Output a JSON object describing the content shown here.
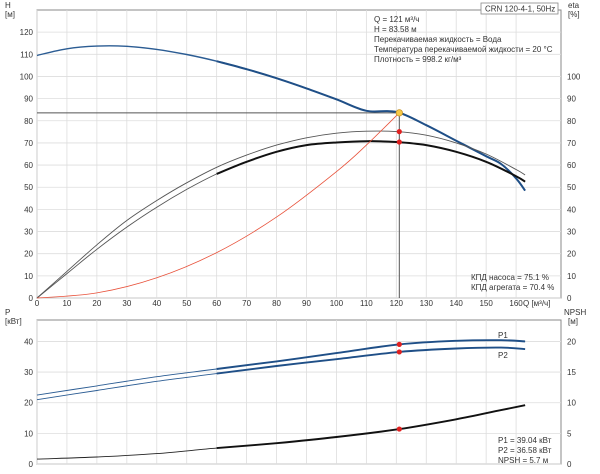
{
  "chart_data": [
    {
      "type": "line",
      "panel": "head-efficiency",
      "title_box": "CRN 120-4-1, 50Hz",
      "left_axis": {
        "label_top": "H",
        "label_unit": "[м]",
        "ylim": [
          0,
          130
        ],
        "ticks": [
          0,
          10,
          20,
          30,
          40,
          50,
          60,
          70,
          80,
          90,
          100,
          110,
          120
        ]
      },
      "right_axis": {
        "label_top": "eta",
        "label_unit": "[%]",
        "ylim": [
          0,
          130
        ],
        "ticks": [
          0,
          10,
          20,
          30,
          40,
          50,
          60,
          70,
          80,
          90,
          100
        ]
      },
      "x_axis": {
        "label": "Q [м³/ч]",
        "xlim": [
          0,
          175
        ],
        "ticks": [
          0,
          10,
          20,
          30,
          40,
          50,
          60,
          70,
          80,
          90,
          100,
          110,
          120,
          130,
          140,
          150,
          160
        ]
      },
      "grid": true,
      "series": [
        {
          "name": "H",
          "color": "#2b5c93",
          "x": [
            0,
            10,
            20,
            30,
            40,
            50,
            60,
            70,
            80,
            90,
            100,
            110,
            120,
            130,
            140,
            150,
            155,
            160,
            163
          ],
          "y": [
            109.5,
            112.5,
            113.7,
            113.6,
            112.2,
            109.9,
            106.9,
            103.3,
            99.2,
            94.6,
            89.7,
            84.5,
            84,
            78,
            71,
            64,
            60.5,
            54,
            48.5
          ]
        },
        {
          "name": "eta pump",
          "color": "#555555",
          "x": [
            0,
            10,
            20,
            30,
            40,
            50,
            60,
            70,
            80,
            90,
            100,
            110,
            120,
            130,
            140,
            150,
            160,
            163
          ],
          "y": [
            0,
            12,
            24,
            35,
            44,
            52,
            59,
            64.5,
            69,
            72.3,
            74.4,
            75.3,
            75.1,
            73.5,
            70,
            65,
            58,
            55.5
          ]
        },
        {
          "name": "eta unit",
          "color": "#555555",
          "x": [
            0,
            10,
            20,
            30,
            40,
            50,
            60,
            70,
            80,
            90,
            100,
            110,
            120,
            130,
            140,
            150,
            160,
            163
          ],
          "y": [
            0,
            11,
            22,
            32,
            41,
            49,
            56,
            61.5,
            66,
            69,
            70.2,
            70.8,
            70.4,
            69,
            66,
            61.5,
            55,
            52.5
          ]
        },
        {
          "name": "system curve",
          "color": "#e8513a",
          "x": [
            0,
            20,
            40,
            60,
            80,
            100,
            110,
            121
          ],
          "y": [
            0,
            2.3,
            9.1,
            20.5,
            36.5,
            57,
            69,
            83.58
          ]
        }
      ],
      "operating_point": {
        "x": 121,
        "y": 83.58,
        "eta_pump": 75.1,
        "eta_unit": 70.4
      },
      "info_lines": [
        "Q = 121 м³/ч",
        "H = 83.58 м",
        "Перекачиваемая жидкость = Вода",
        "Температура перекачиваемой жидкости = 20 °C",
        "Плотность = 998.2 кг/м³"
      ],
      "eta_lines": [
        "КПД насоса = 75.1 %",
        "КПД агрегата = 70.4 %"
      ]
    },
    {
      "type": "line",
      "panel": "power-npsh",
      "left_axis": {
        "label_top": "P",
        "label_unit": "[кВт]",
        "ylim": [
          0,
          47
        ],
        "ticks": [
          0,
          10,
          20,
          30,
          40
        ]
      },
      "right_axis": {
        "label_top": "NPSH",
        "label_unit": "[м]",
        "ylim": [
          0,
          23.5
        ],
        "ticks": [
          0,
          5,
          10,
          15,
          20
        ]
      },
      "x_axis": {
        "xlim": [
          0,
          175
        ],
        "ticks": [
          0,
          10,
          20,
          30,
          40,
          50,
          60,
          70,
          80,
          90,
          100,
          110,
          120,
          130,
          140,
          150,
          160
        ]
      },
      "grid": true,
      "series": [
        {
          "name": "P1",
          "color": "#2b5c93",
          "x": [
            0,
            20,
            40,
            60,
            80,
            100,
            121,
            140,
            155,
            163
          ],
          "y": [
            22.5,
            25.5,
            28.5,
            31,
            33.5,
            36.2,
            39.04,
            40.2,
            40.4,
            40
          ]
        },
        {
          "name": "P2",
          "color": "#2b5c93",
          "x": [
            0,
            20,
            40,
            60,
            80,
            100,
            121,
            140,
            155,
            163
          ],
          "y": [
            21,
            24,
            27,
            29.5,
            32,
            34.2,
            36.58,
            37.7,
            38,
            37.5
          ]
        },
        {
          "name": "NPSH",
          "color": "#222222",
          "x": [
            0,
            20,
            40,
            60,
            80,
            100,
            121,
            140,
            155,
            163
          ],
          "y": [
            0.8,
            1.15,
            1.7,
            2.6,
            3.4,
            4.4,
            5.7,
            7.3,
            8.8,
            9.6
          ]
        }
      ],
      "operating_point": {
        "x": 121,
        "p1": 39.04,
        "p2": 36.58,
        "npsh": 5.7
      },
      "info_lines": [
        "P1 = 39.04 кВт",
        "P2 = 36.58 кВт",
        "NPSH = 5.7 м"
      ]
    }
  ]
}
